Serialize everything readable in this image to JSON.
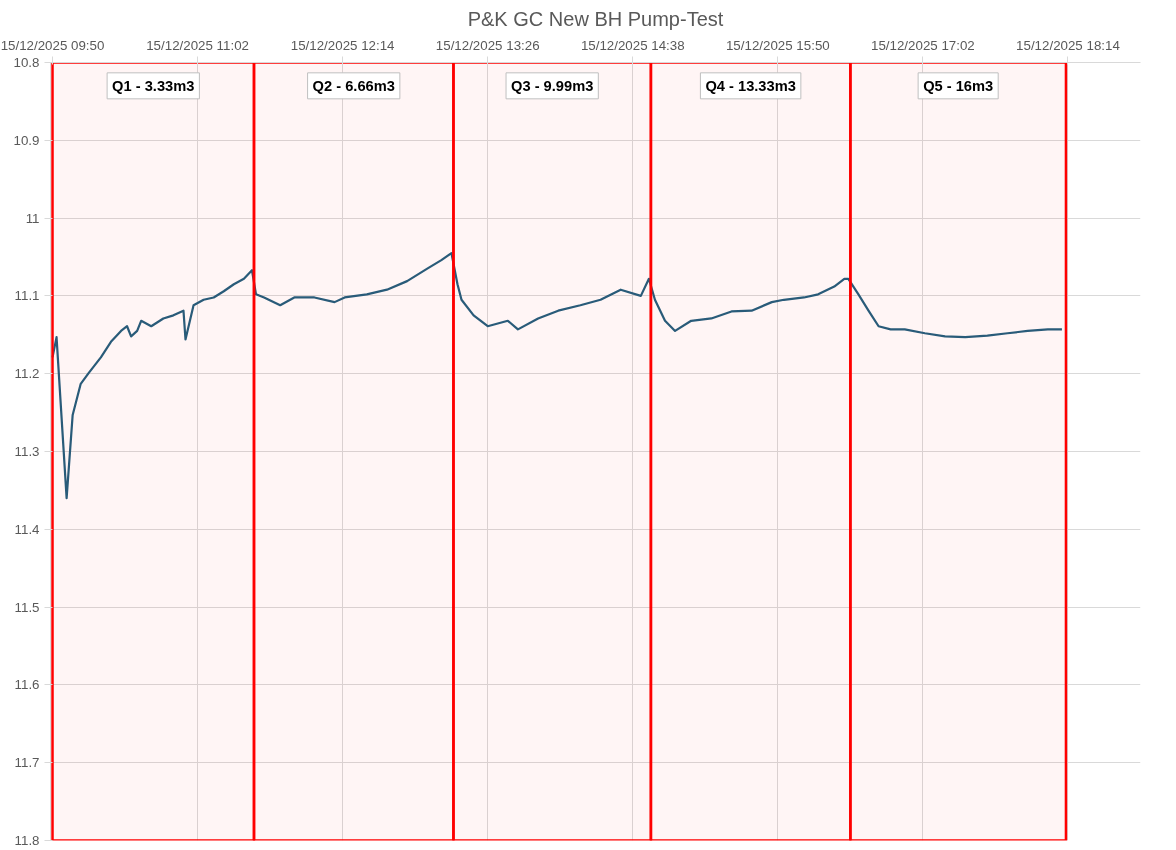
{
  "chart_data": {
    "type": "line",
    "title": "P&K GC New BH Pump-Test",
    "x": [
      "2025-12-15T09:50",
      "2025-12-15T09:52",
      "2025-12-15T09:57",
      "2025-12-15T10:00",
      "2025-12-15T10:04",
      "2025-12-15T10:08",
      "2025-12-15T10:14",
      "2025-12-15T10:19",
      "2025-12-15T10:24",
      "2025-12-15T10:27",
      "2025-12-15T10:29",
      "2025-12-15T10:32",
      "2025-12-15T10:34",
      "2025-12-15T10:39",
      "2025-12-15T10:45",
      "2025-12-15T10:50",
      "2025-12-15T10:55",
      "2025-12-15T10:56",
      "2025-12-15T11:00",
      "2025-12-15T11:05",
      "2025-12-15T11:10",
      "2025-12-15T11:15",
      "2025-12-15T11:20",
      "2025-12-15T11:25",
      "2025-12-15T11:29",
      "2025-12-15T11:31",
      "2025-12-15T11:35",
      "2025-12-15T11:43",
      "2025-12-15T11:50",
      "2025-12-15T12:00",
      "2025-12-15T12:10",
      "2025-12-15T12:15",
      "2025-12-15T12:26",
      "2025-12-15T12:36",
      "2025-12-15T12:46",
      "2025-12-15T12:56",
      "2025-12-15T13:03",
      "2025-12-15T13:08",
      "2025-12-15T13:11",
      "2025-12-15T13:13",
      "2025-12-15T13:19",
      "2025-12-15T13:26",
      "2025-12-15T13:36",
      "2025-12-15T13:41",
      "2025-12-15T13:51",
      "2025-12-15T14:01",
      "2025-12-15T14:12",
      "2025-12-15T14:22",
      "2025-12-15T14:32",
      "2025-12-15T14:42",
      "2025-12-15T14:46",
      "2025-12-15T14:49",
      "2025-12-15T14:54",
      "2025-12-15T14:59",
      "2025-12-15T15:07",
      "2025-12-15T15:17",
      "2025-12-15T15:27",
      "2025-12-15T15:37",
      "2025-12-15T15:47",
      "2025-12-15T15:53",
      "2025-12-15T16:03",
      "2025-12-15T16:10",
      "2025-12-15T16:18",
      "2025-12-15T16:23",
      "2025-12-15T16:25",
      "2025-12-15T16:30",
      "2025-12-15T16:35",
      "2025-12-15T16:40",
      "2025-12-15T16:46",
      "2025-12-15T16:53",
      "2025-12-15T17:03",
      "2025-12-15T17:13",
      "2025-12-15T17:23",
      "2025-12-15T17:34",
      "2025-12-15T17:44",
      "2025-12-15T17:54",
      "2025-12-15T18:04",
      "2025-12-15T18:11"
    ],
    "series": [
      {
        "color": "#215f7e",
        "values": [
          11.179,
          11.153,
          11.36,
          11.253,
          11.213,
          11.199,
          11.179,
          11.159,
          11.145,
          11.139,
          11.152,
          11.145,
          11.132,
          11.139,
          11.129,
          11.125,
          11.119,
          11.156,
          11.112,
          11.105,
          11.102,
          11.094,
          11.085,
          11.078,
          11.067,
          11.098,
          11.102,
          11.112,
          11.102,
          11.102,
          11.108,
          11.102,
          11.098,
          11.092,
          11.081,
          11.065,
          11.054,
          11.045,
          11.085,
          11.105,
          11.125,
          11.139,
          11.132,
          11.143,
          11.129,
          11.119,
          11.112,
          11.105,
          11.092,
          11.1,
          11.078,
          11.105,
          11.132,
          11.145,
          11.132,
          11.129,
          11.12,
          11.119,
          11.108,
          11.105,
          11.102,
          11.098,
          11.088,
          11.078,
          11.078,
          11.098,
          11.119,
          11.139,
          11.143,
          11.143,
          11.148,
          11.152,
          11.153,
          11.151,
          11.148,
          11.145,
          11.143,
          11.143
        ]
      }
    ],
    "xlim": [
      "2025-12-15T09:49",
      "2025-12-15T18:50"
    ],
    "xticks": [
      {
        "value": "2025-12-15T09:50",
        "label": "15/12/2025 09:50"
      },
      {
        "value": "2025-12-15T11:02",
        "label": "15/12/2025 11:02"
      },
      {
        "value": "2025-12-15T12:14",
        "label": "15/12/2025 12:14"
      },
      {
        "value": "2025-12-15T13:26",
        "label": "15/12/2025 13:26"
      },
      {
        "value": "2025-12-15T14:38",
        "label": "15/12/2025 14:38"
      },
      {
        "value": "2025-12-15T15:50",
        "label": "15/12/2025 15:50"
      },
      {
        "value": "2025-12-15T17:02",
        "label": "15/12/2025 17:02"
      },
      {
        "value": "2025-12-15T18:14",
        "label": "15/12/2025 18:14"
      }
    ],
    "ylim": [
      11.8,
      10.8
    ],
    "yticks": [
      10.8,
      10.9,
      {
        "value": 11,
        "label": "11"
      },
      11.1,
      11.2,
      11.3,
      11.4,
      11.5,
      11.6,
      11.7,
      11.8
    ],
    "bands": [
      {
        "axis": "x",
        "from": "2025-12-15T09:50",
        "to": "2025-12-15T11:30",
        "label": "Q1 - 3.33m3",
        "color": "#ff0000"
      },
      {
        "axis": "x",
        "from": "2025-12-15T11:30",
        "to": "2025-12-15T13:09",
        "label": "Q2 - 6.66m3",
        "color": "#ff0000"
      },
      {
        "axis": "x",
        "from": "2025-12-15T13:09",
        "to": "2025-12-15T14:47",
        "label": "Q3 - 9.99m3",
        "color": "#ff0000"
      },
      {
        "axis": "x",
        "from": "2025-12-15T14:47",
        "to": "2025-12-15T16:26",
        "label": "Q4 - 13.33m3",
        "color": "#ff0000"
      },
      {
        "axis": "x",
        "from": "2025-12-15T16:26",
        "to": "2025-12-15T18:13",
        "label": "Q5 - 16m3",
        "color": "#ff0000"
      }
    ],
    "grid": true,
    "marker": "none",
    "line_style": "solid"
  }
}
